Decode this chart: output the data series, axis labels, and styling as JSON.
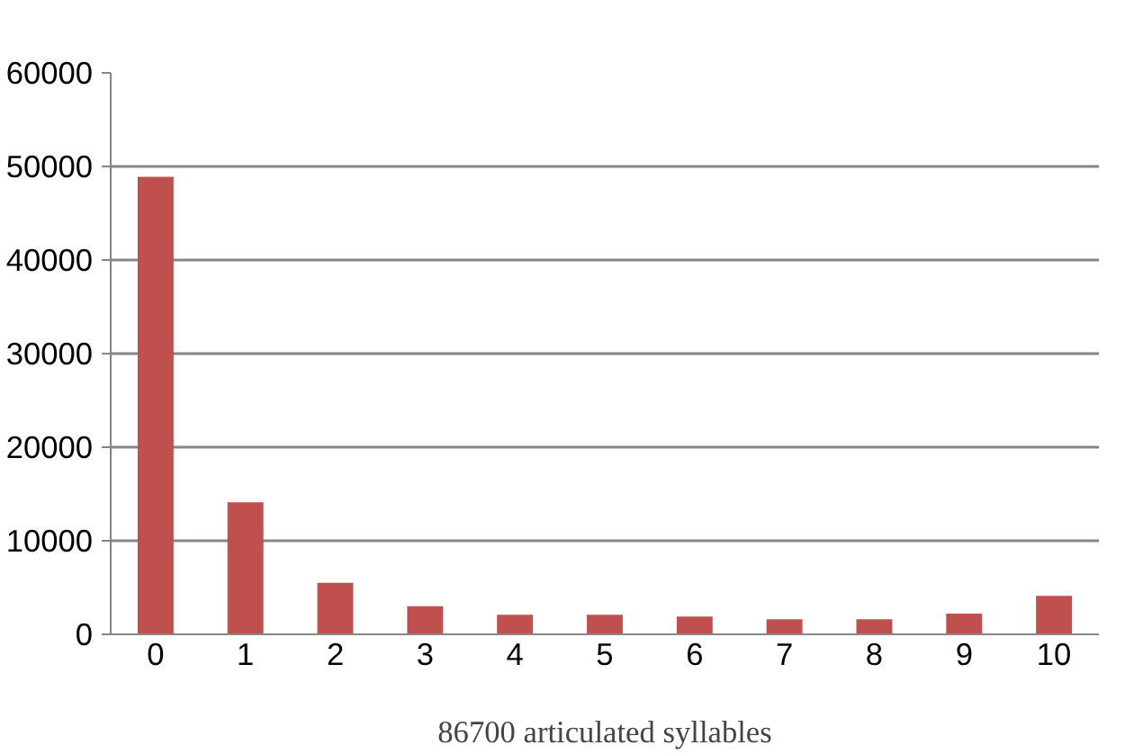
{
  "chart_data": {
    "type": "bar",
    "xlabel": "86700 articulated syllables",
    "categories": [
      "0",
      "1",
      "2",
      "3",
      "4",
      "5",
      "6",
      "7",
      "8",
      "9",
      "10"
    ],
    "values": [
      48900,
      14100,
      5500,
      3000,
      2100,
      2100,
      1900,
      1600,
      1600,
      2200,
      4100
    ],
    "color": "#c0504d",
    "ylim": [
      0,
      60000
    ],
    "yticks": [
      0,
      10000,
      20000,
      30000,
      40000,
      50000,
      60000
    ],
    "grid": "y"
  }
}
